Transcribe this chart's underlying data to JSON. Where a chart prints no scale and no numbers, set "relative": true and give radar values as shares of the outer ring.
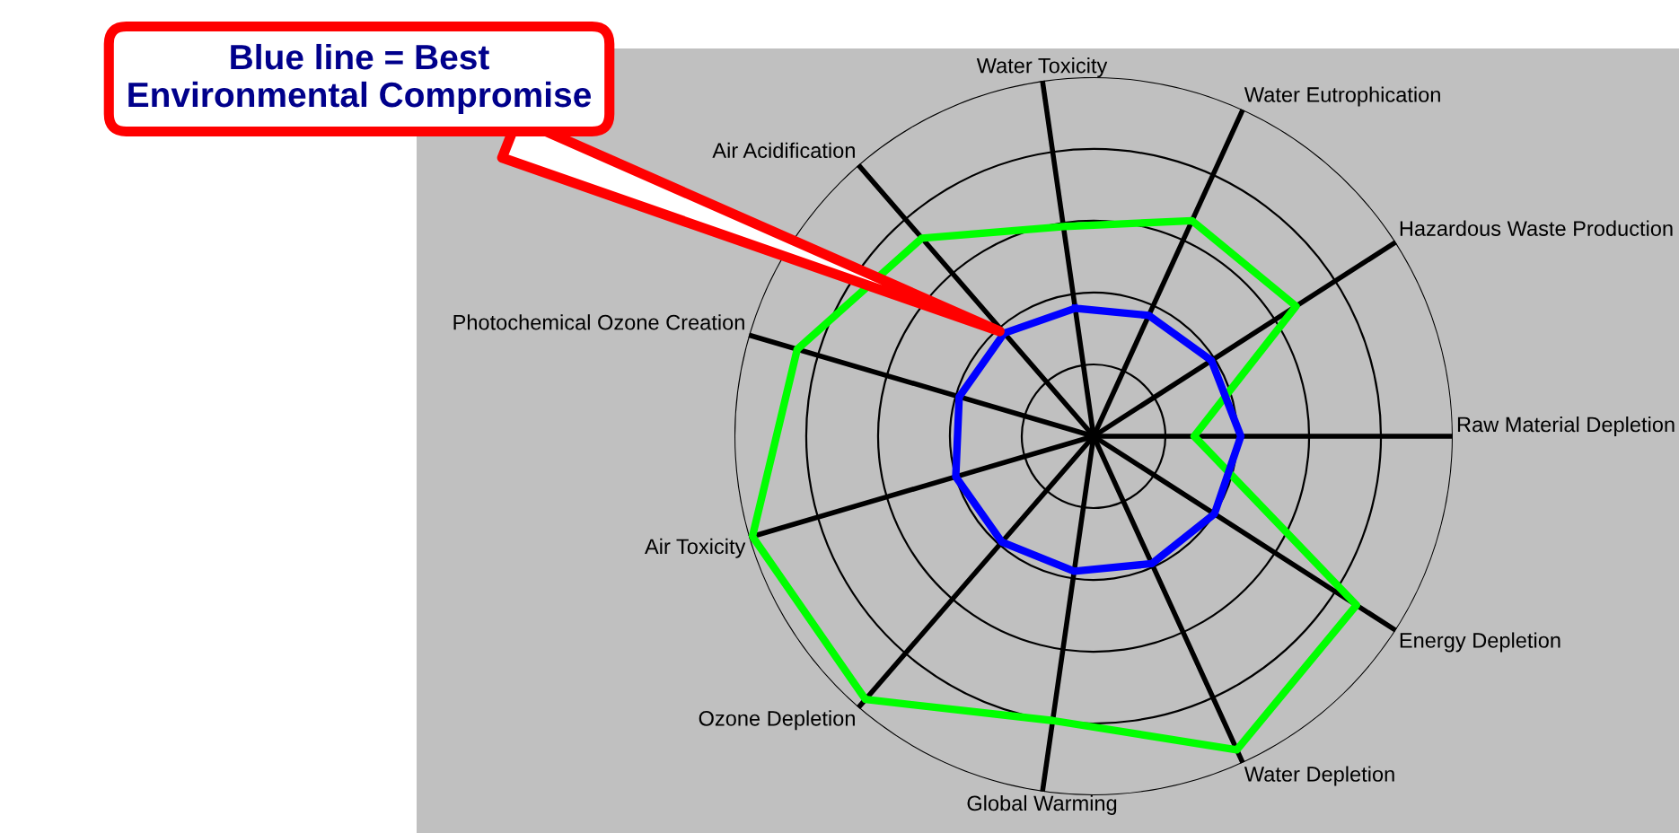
{
  "chart_data": {
    "type": "radar",
    "relative": true,
    "grid": true,
    "categories": [
      "Water Toxicity",
      "Water Eutrophication",
      "Hazardous Waste Production",
      "Raw Material Depletion",
      "Energy Depletion",
      "Water Depletion",
      "Global Warming",
      "Ozone Depletion",
      "Air Toxicity",
      "Photochemical Ozone Creation",
      "Air Acidification"
    ],
    "series": [
      {
        "color": "#00ff00",
        "values": [
          0.59,
          0.66,
          0.67,
          0.28,
          0.87,
          0.96,
          0.8,
          0.97,
          0.99,
          0.86,
          0.73
        ]
      },
      {
        "color": "#0000ff",
        "values": [
          0.36,
          0.37,
          0.39,
          0.41,
          0.4,
          0.39,
          0.38,
          0.39,
          0.4,
          0.39,
          0.38
        ]
      }
    ],
    "annotations": [
      "Blue line = Best\nEnvironmental Compromise"
    ]
  }
}
